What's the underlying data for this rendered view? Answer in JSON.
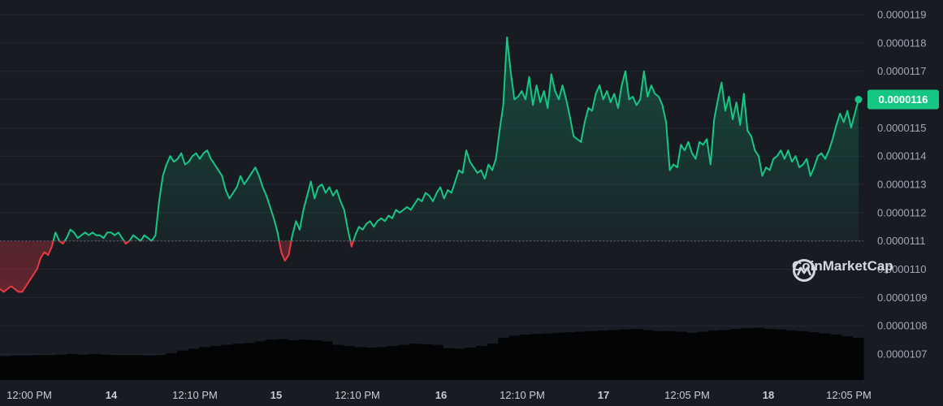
{
  "chart_data": {
    "type": "line",
    "title": "",
    "xlabel": "",
    "ylabel": "",
    "ylim": [
      1.066e-05,
      1.19e-05
    ],
    "y_ticks": [
      "0.0000119",
      "0.0000118",
      "0.0000117",
      "0.0000116",
      "0.0000115",
      "0.0000114",
      "0.0000113",
      "0.0000112",
      "0.0000111",
      "0.0000110",
      "0.0000109",
      "0.0000108",
      "0.0000107"
    ],
    "y_tick_values": [
      1.19e-05,
      1.18e-05,
      1.17e-05,
      1.16e-05,
      1.15e-05,
      1.14e-05,
      1.13e-05,
      1.12e-05,
      1.11e-05,
      1.1e-05,
      1.09e-05,
      1.08e-05,
      1.07e-05
    ],
    "x_ticks": [
      "12:00 PM",
      "14",
      "12:10 PM",
      "15",
      "12:10 PM",
      "16",
      "12:10 PM",
      "17",
      "12:05 PM",
      "18",
      "12:05 PM"
    ],
    "x_tick_bold": [
      false,
      true,
      false,
      true,
      false,
      true,
      false,
      true,
      false,
      true,
      false
    ],
    "reference_price": 1.11e-05,
    "current_price": 1.16e-05,
    "current_price_label": "0.0000116",
    "color_up": "#16c784",
    "color_down": "#ea3943",
    "volume_color": "#2f3355",
    "series": [
      {
        "values": [
          1.093e-05,
          1.092e-05,
          1.093e-05,
          1.094e-05,
          1.093e-05,
          1.092e-05,
          1.092e-05,
          1.094e-05,
          1.096e-05,
          1.098e-05,
          1.1e-05,
          1.104e-05,
          1.106e-05,
          1.105e-05,
          1.108e-05,
          1.113e-05,
          1.11e-05,
          1.109e-05,
          1.111e-05,
          1.114e-05,
          1.113e-05,
          1.111e-05,
          1.112e-05,
          1.113e-05,
          1.112e-05,
          1.113e-05,
          1.112e-05,
          1.112e-05,
          1.111e-05,
          1.113e-05,
          1.113e-05,
          1.112e-05,
          1.113e-05,
          1.111e-05,
          1.109e-05,
          1.11e-05,
          1.112e-05,
          1.111e-05,
          1.11e-05,
          1.112e-05,
          1.111e-05,
          1.11e-05,
          1.112e-05,
          1.124e-05,
          1.133e-05,
          1.137e-05,
          1.14e-05,
          1.138e-05,
          1.139e-05,
          1.141e-05,
          1.137e-05,
          1.138e-05,
          1.14e-05,
          1.141e-05,
          1.139e-05,
          1.141e-05,
          1.142e-05,
          1.139e-05,
          1.137e-05,
          1.135e-05,
          1.133e-05,
          1.128e-05,
          1.125e-05,
          1.127e-05,
          1.129e-05,
          1.133e-05,
          1.13e-05,
          1.132e-05,
          1.134e-05,
          1.136e-05,
          1.133e-05,
          1.129e-05,
          1.126e-05,
          1.122e-05,
          1.118e-05,
          1.113e-05,
          1.106e-05,
          1.103e-05,
          1.105e-05,
          1.112e-05,
          1.117e-05,
          1.114e-05,
          1.121e-05,
          1.126e-05,
          1.131e-05,
          1.125e-05,
          1.129e-05,
          1.13e-05,
          1.127e-05,
          1.129e-05,
          1.126e-05,
          1.128e-05,
          1.124e-05,
          1.121e-05,
          1.114e-05,
          1.108e-05,
          1.112e-05,
          1.115e-05,
          1.114e-05,
          1.116e-05,
          1.117e-05,
          1.115e-05,
          1.117e-05,
          1.118e-05,
          1.117e-05,
          1.119e-05,
          1.118e-05,
          1.121e-05,
          1.12e-05,
          1.121e-05,
          1.122e-05,
          1.121e-05,
          1.123e-05,
          1.125e-05,
          1.124e-05,
          1.127e-05,
          1.126e-05,
          1.124e-05,
          1.127e-05,
          1.129e-05,
          1.125e-05,
          1.128e-05,
          1.127e-05,
          1.131e-05,
          1.135e-05,
          1.134e-05,
          1.142e-05,
          1.138e-05,
          1.136e-05,
          1.134e-05,
          1.135e-05,
          1.132e-05,
          1.137e-05,
          1.135e-05,
          1.139e-05,
          1.149e-05,
          1.158e-05,
          1.182e-05,
          1.17e-05,
          1.16e-05,
          1.161e-05,
          1.163e-05,
          1.16e-05,
          1.168e-05,
          1.158e-05,
          1.165e-05,
          1.159e-05,
          1.163e-05,
          1.157e-05,
          1.169e-05,
          1.163e-05,
          1.16e-05,
          1.165e-05,
          1.16e-05,
          1.154e-05,
          1.147e-05,
          1.146e-05,
          1.145e-05,
          1.152e-05,
          1.157e-05,
          1.156e-05,
          1.162e-05,
          1.165e-05,
          1.16e-05,
          1.163e-05,
          1.159e-05,
          1.162e-05,
          1.157e-05,
          1.165e-05,
          1.17e-05,
          1.16e-05,
          1.161e-05,
          1.158e-05,
          1.16e-05,
          1.17e-05,
          1.161e-05,
          1.165e-05,
          1.162e-05,
          1.161e-05,
          1.158e-05,
          1.152e-05,
          1.135e-05,
          1.137e-05,
          1.136e-05,
          1.144e-05,
          1.142e-05,
          1.145e-05,
          1.141e-05,
          1.139e-05,
          1.145e-05,
          1.144e-05,
          1.146e-05,
          1.137e-05,
          1.153e-05,
          1.16e-05,
          1.166e-05,
          1.156e-05,
          1.161e-05,
          1.153e-05,
          1.159e-05,
          1.151e-05,
          1.162e-05,
          1.149e-05,
          1.147e-05,
          1.142e-05,
          1.14e-05,
          1.133e-05,
          1.136e-05,
          1.135e-05,
          1.139e-05,
          1.14e-05,
          1.142e-05,
          1.139e-05,
          1.142e-05,
          1.138e-05,
          1.14e-05,
          1.136e-05,
          1.137e-05,
          1.139e-05,
          1.133e-05,
          1.136e-05,
          1.14e-05,
          1.141e-05,
          1.139e-05,
          1.142e-05,
          1.146e-05,
          1.151e-05,
          1.155e-05,
          1.152e-05,
          1.156e-05,
          1.15e-05,
          1.155e-05,
          1.16e-05
        ]
      }
    ]
  },
  "volume": [
    0.42,
    0.43,
    0.43,
    0.44,
    0.44,
    0.45,
    0.46,
    0.45,
    0.46,
    0.45,
    0.44,
    0.44,
    0.44,
    0.43,
    0.44,
    0.47,
    0.52,
    0.55,
    0.58,
    0.6,
    0.62,
    0.64,
    0.65,
    0.68,
    0.71,
    0.72,
    0.7,
    0.71,
    0.7,
    0.68,
    0.62,
    0.6,
    0.58,
    0.57,
    0.58,
    0.6,
    0.62,
    0.64,
    0.63,
    0.62,
    0.56,
    0.55,
    0.57,
    0.6,
    0.64,
    0.74,
    0.78,
    0.8,
    0.81,
    0.82,
    0.83,
    0.84,
    0.85,
    0.86,
    0.87,
    0.88,
    0.89,
    0.9,
    0.88,
    0.86,
    0.86,
    0.85,
    0.83,
    0.85,
    0.87,
    0.88,
    0.9,
    0.91,
    0.92,
    0.9,
    0.89,
    0.87,
    0.86,
    0.84,
    0.82,
    0.8,
    0.77,
    0.74
  ],
  "brand": {
    "name": "CoinMarketCap"
  }
}
